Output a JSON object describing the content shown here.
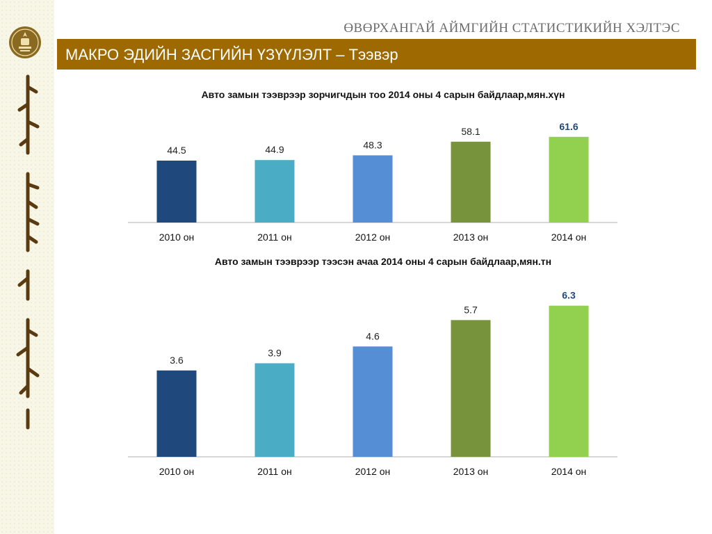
{
  "header": {
    "org_name": "ӨВӨРХАНГАЙ АЙМГИЙН СТАТИСТИКИЙН ХЭЛТЭС",
    "title": "МАКРО ЭДИЙН ЗАСГИЙН ҮЗҮҮЛЭЛТ – Тээвэр"
  },
  "sidebar": {
    "emblem_icon": "statistics-emblem-icon",
    "script_icon": "mongolian-script-icon"
  },
  "chart_data": [
    {
      "type": "bar",
      "title": "Авто замын тээврээр зорчигчдын тоо 2014 оны 4 сарын байдлаар,мян.хүн",
      "categories": [
        "2010 он",
        "2011 он",
        "2012 он",
        "2013 он",
        "2014 он"
      ],
      "values": [
        44.5,
        44.9,
        48.3,
        58.1,
        61.6
      ],
      "labels": [
        "44.5",
        "44.9",
        "48.3",
        "58.1",
        "61.6"
      ],
      "colors": [
        "#1f497d",
        "#4bacc6",
        "#558ed5",
        "#77933c",
        "#92d050"
      ],
      "highlight_index": 4,
      "highlight_color": "#1f497d",
      "grid": false,
      "legend": "none"
    },
    {
      "type": "bar",
      "title": "Авто замын тээврээр тээсэн ачаа  2014 оны 4 сарын байдлаар,мян.тн",
      "categories": [
        "2010 он",
        "2011 он",
        "2012 он",
        "2013 он",
        "2014 он"
      ],
      "values": [
        3.6,
        3.9,
        4.6,
        5.7,
        6.3
      ],
      "labels": [
        "3.6",
        "3.9",
        "4.6",
        "5.7",
        "6.3"
      ],
      "colors": [
        "#1f497d",
        "#4bacc6",
        "#558ed5",
        "#77933c",
        "#92d050"
      ],
      "highlight_index": 4,
      "highlight_color": "#1f497d",
      "grid": false,
      "legend": "none"
    }
  ]
}
